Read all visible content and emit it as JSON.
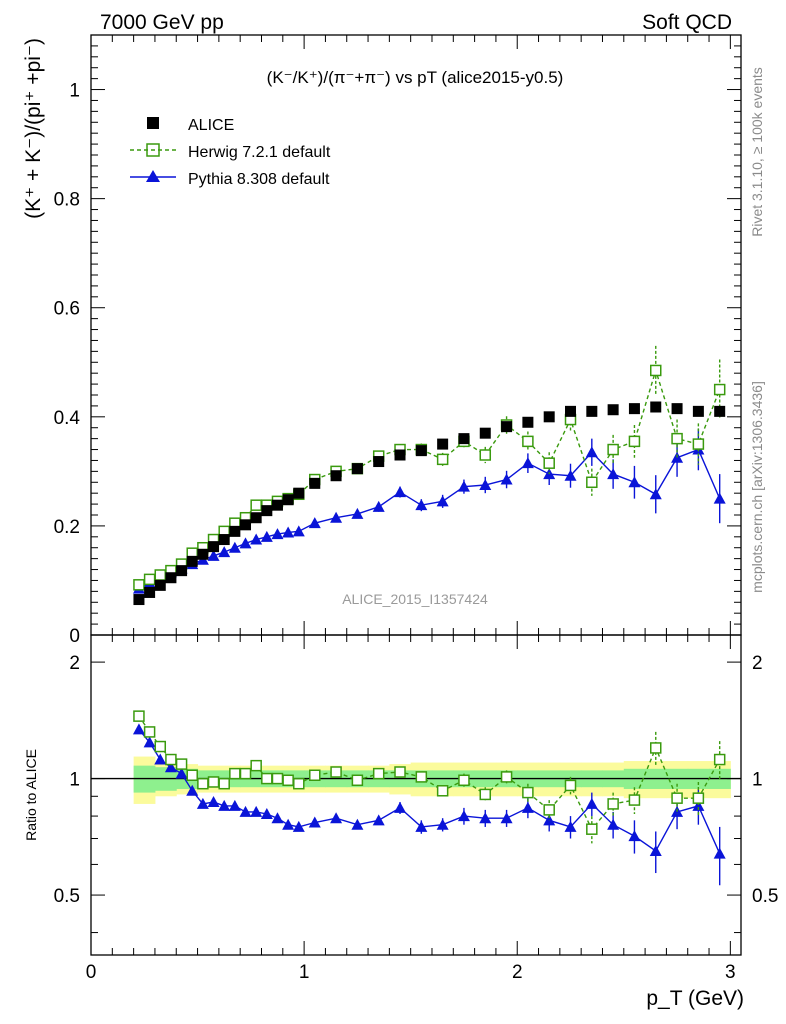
{
  "header": {
    "left": "7000 GeV pp",
    "right": "Soft QCD"
  },
  "main_plot": {
    "title": "(K⁻/K⁺)/(π⁻+π⁻) vs pT (alice2015-y0.5)",
    "ylabel": "(K⁺ + K⁻)/(pi⁺ +pi⁻)",
    "watermark": "ALICE_2015_I1357424",
    "y_ticks": [
      "0",
      "0.2",
      "0.4",
      "0.6",
      "0.8",
      "1"
    ]
  },
  "ratio_plot": {
    "ylabel": "Ratio to ALICE",
    "y_ticks": [
      "0.5",
      "1",
      "2"
    ]
  },
  "x_axis": {
    "label": "p_T (GeV)",
    "ticks": [
      "0",
      "1",
      "2",
      "3"
    ]
  },
  "side_labels": {
    "rivet": "Rivet 3.1.10, ≥ 100k events",
    "mcplots": "mcplots.cern.ch [arXiv:1306.3436]"
  },
  "legend": [
    {
      "name": "ALICE",
      "color": "#000000",
      "marker": "filled-square"
    },
    {
      "name": "Herwig 7.2.1 default",
      "color": "#3a9a0e",
      "marker": "open-square"
    },
    {
      "name": "Pythia 8.308 default",
      "color": "#0a14d8",
      "marker": "filled-triangle"
    }
  ],
  "chart_data": [
    {
      "type": "scatter",
      "panel": "main",
      "xlim": [
        0,
        3.05
      ],
      "ylim": [
        0,
        1.1
      ],
      "x": [
        0.225,
        0.275,
        0.325,
        0.375,
        0.425,
        0.475,
        0.525,
        0.575,
        0.625,
        0.675,
        0.725,
        0.775,
        0.825,
        0.875,
        0.925,
        0.975,
        1.05,
        1.15,
        1.25,
        1.35,
        1.45,
        1.55,
        1.65,
        1.75,
        1.85,
        1.95,
        2.05,
        2.15,
        2.25,
        2.35,
        2.45,
        2.55,
        2.65,
        2.75,
        2.85,
        2.95
      ],
      "series": [
        {
          "name": "ALICE",
          "values": [
            0.065,
            0.078,
            0.091,
            0.105,
            0.118,
            0.135,
            0.148,
            0.162,
            0.175,
            0.19,
            0.202,
            0.215,
            0.228,
            0.238,
            0.248,
            0.26,
            0.278,
            0.292,
            0.305,
            0.318,
            0.33,
            0.338,
            0.35,
            0.36,
            0.37,
            0.382,
            0.39,
            0.4,
            0.41,
            0.41,
            0.413,
            0.415,
            0.418,
            0.415,
            0.41,
            0.41
          ]
        },
        {
          "name": "Herwig 7.2.1 default",
          "values": [
            0.092,
            0.102,
            0.11,
            0.118,
            0.13,
            0.15,
            0.16,
            0.175,
            0.19,
            0.205,
            0.215,
            0.238,
            0.238,
            0.245,
            0.25,
            0.258,
            0.285,
            0.3,
            0.305,
            0.328,
            0.34,
            0.34,
            0.322,
            0.355,
            0.33,
            0.385,
            0.355,
            0.315,
            0.395,
            0.28,
            0.34,
            0.355,
            0.485,
            0.36,
            0.35,
            0.45
          ],
          "errors": [
            0.003,
            0.003,
            0.003,
            0.003,
            0.003,
            0.004,
            0.004,
            0.004,
            0.004,
            0.004,
            0.004,
            0.005,
            0.005,
            0.005,
            0.005,
            0.005,
            0.006,
            0.007,
            0.008,
            0.009,
            0.01,
            0.011,
            0.012,
            0.013,
            0.015,
            0.016,
            0.018,
            0.02,
            0.022,
            0.025,
            0.027,
            0.03,
            0.045,
            0.035,
            0.038,
            0.055
          ]
        },
        {
          "name": "Pythia 8.308 default",
          "values": [
            0.085,
            0.095,
            0.105,
            0.115,
            0.122,
            0.13,
            0.138,
            0.145,
            0.152,
            0.16,
            0.168,
            0.175,
            0.18,
            0.185,
            0.188,
            0.19,
            0.205,
            0.215,
            0.222,
            0.235,
            0.262,
            0.238,
            0.245,
            0.272,
            0.275,
            0.285,
            0.315,
            0.295,
            0.292,
            0.335,
            0.295,
            0.28,
            0.258,
            0.325,
            0.34,
            0.25
          ],
          "errors": [
            0.003,
            0.003,
            0.003,
            0.003,
            0.003,
            0.003,
            0.003,
            0.004,
            0.004,
            0.004,
            0.004,
            0.004,
            0.005,
            0.005,
            0.005,
            0.005,
            0.006,
            0.007,
            0.008,
            0.009,
            0.01,
            0.011,
            0.012,
            0.013,
            0.015,
            0.016,
            0.018,
            0.02,
            0.022,
            0.025,
            0.027,
            0.03,
            0.035,
            0.035,
            0.038,
            0.045
          ]
        }
      ]
    },
    {
      "type": "scatter",
      "panel": "ratio",
      "xlim": [
        0,
        3.05
      ],
      "ylim": [
        0.35,
        2.35
      ],
      "y_scale": "log",
      "reference_line": 1,
      "x": [
        0.225,
        0.275,
        0.325,
        0.375,
        0.425,
        0.475,
        0.525,
        0.575,
        0.625,
        0.675,
        0.725,
        0.775,
        0.825,
        0.875,
        0.925,
        0.975,
        1.05,
        1.15,
        1.25,
        1.35,
        1.45,
        1.55,
        1.65,
        1.75,
        1.85,
        1.95,
        2.05,
        2.15,
        2.25,
        2.35,
        2.45,
        2.55,
        2.65,
        2.75,
        2.85,
        2.95
      ],
      "bands": {
        "x_edges": [
          0.2,
          0.3,
          0.4,
          0.5,
          0.6,
          0.7,
          0.8,
          0.9,
          1.0,
          1.1,
          1.2,
          1.3,
          1.4,
          1.5,
          1.6,
          1.7,
          1.8,
          1.9,
          2.0,
          2.1,
          2.2,
          2.3,
          2.4,
          2.5,
          2.6,
          2.7,
          2.8,
          2.9,
          3.0
        ],
        "inner_low": [
          0.92,
          0.93,
          0.94,
          0.95,
          0.95,
          0.95,
          0.95,
          0.95,
          0.95,
          0.95,
          0.95,
          0.95,
          0.95,
          0.95,
          0.95,
          0.95,
          0.95,
          0.95,
          0.95,
          0.95,
          0.95,
          0.95,
          0.95,
          0.94,
          0.94,
          0.94,
          0.94,
          0.94
        ],
        "inner_high": [
          1.08,
          1.07,
          1.06,
          1.05,
          1.05,
          1.05,
          1.05,
          1.05,
          1.05,
          1.05,
          1.05,
          1.05,
          1.05,
          1.05,
          1.05,
          1.05,
          1.05,
          1.05,
          1.05,
          1.05,
          1.05,
          1.05,
          1.05,
          1.06,
          1.06,
          1.06,
          1.06,
          1.06
        ],
        "outer_low": [
          0.86,
          0.9,
          0.91,
          0.92,
          0.92,
          0.92,
          0.92,
          0.92,
          0.92,
          0.92,
          0.92,
          0.92,
          0.91,
          0.9,
          0.9,
          0.9,
          0.9,
          0.9,
          0.9,
          0.9,
          0.9,
          0.9,
          0.9,
          0.89,
          0.89,
          0.89,
          0.89,
          0.89
        ],
        "outer_high": [
          1.14,
          1.1,
          1.09,
          1.08,
          1.08,
          1.08,
          1.08,
          1.08,
          1.08,
          1.08,
          1.08,
          1.08,
          1.09,
          1.1,
          1.1,
          1.1,
          1.1,
          1.1,
          1.1,
          1.1,
          1.1,
          1.1,
          1.1,
          1.11,
          1.11,
          1.11,
          1.11,
          1.11
        ],
        "inner_color": "#8ef08e",
        "outer_color": "#fbfb9c"
      },
      "series": [
        {
          "name": "Herwig 7.2.1 default",
          "values": [
            1.45,
            1.32,
            1.21,
            1.12,
            1.09,
            1.02,
            0.97,
            0.98,
            0.97,
            1.03,
            1.03,
            1.08,
            1.0,
            1.0,
            0.99,
            0.97,
            1.02,
            1.04,
            0.99,
            1.03,
            1.04,
            1.01,
            0.93,
            0.99,
            0.91,
            1.01,
            0.92,
            0.83,
            0.96,
            0.74,
            0.86,
            0.88,
            1.2,
            0.89,
            0.89,
            1.12
          ],
          "errors": [
            0.02,
            0.02,
            0.02,
            0.02,
            0.02,
            0.02,
            0.02,
            0.02,
            0.02,
            0.02,
            0.02,
            0.02,
            0.02,
            0.02,
            0.02,
            0.02,
            0.02,
            0.03,
            0.03,
            0.03,
            0.03,
            0.03,
            0.03,
            0.04,
            0.04,
            0.04,
            0.05,
            0.05,
            0.05,
            0.06,
            0.06,
            0.07,
            0.12,
            0.08,
            0.09,
            0.13
          ]
        },
        {
          "name": "Pythia 8.308 default",
          "values": [
            1.34,
            1.24,
            1.12,
            1.07,
            1.03,
            0.93,
            0.86,
            0.87,
            0.85,
            0.85,
            0.82,
            0.82,
            0.81,
            0.79,
            0.76,
            0.75,
            0.77,
            0.79,
            0.76,
            0.78,
            0.84,
            0.75,
            0.76,
            0.8,
            0.79,
            0.79,
            0.84,
            0.78,
            0.75,
            0.86,
            0.76,
            0.71,
            0.65,
            0.82,
            0.85,
            0.64
          ],
          "errors": [
            0.02,
            0.02,
            0.02,
            0.02,
            0.02,
            0.02,
            0.02,
            0.02,
            0.02,
            0.02,
            0.02,
            0.02,
            0.02,
            0.02,
            0.02,
            0.02,
            0.02,
            0.02,
            0.02,
            0.02,
            0.03,
            0.03,
            0.03,
            0.04,
            0.04,
            0.04,
            0.05,
            0.05,
            0.05,
            0.06,
            0.06,
            0.07,
            0.08,
            0.08,
            0.09,
            0.11
          ]
        }
      ]
    }
  ]
}
